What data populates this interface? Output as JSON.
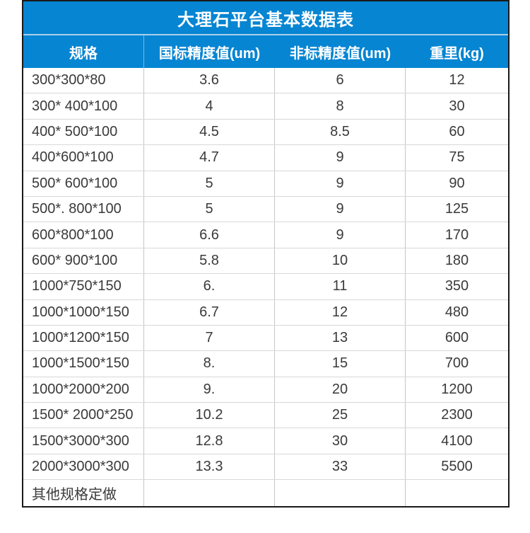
{
  "table": {
    "title": "大理石平台基本数据表",
    "columns": [
      "规格",
      "国标精度值(um)",
      "非标精度值(um)",
      "重里(kg)"
    ],
    "rows": [
      [
        "300*300*80",
        "3.6",
        "6",
        "12"
      ],
      [
        "300* 400*100",
        "4",
        "8",
        "30"
      ],
      [
        "400* 500*100",
        "4.5",
        "8.5",
        "60"
      ],
      [
        "400*600*100",
        "4.7",
        "9",
        "75"
      ],
      [
        "500* 600*100",
        "5",
        "9",
        "90"
      ],
      [
        "500*. 800*100",
        "5",
        "9",
        "125"
      ],
      [
        "600*800*100",
        "6.6",
        "9",
        "170"
      ],
      [
        "600* 900*100",
        "5.8",
        "10",
        "180"
      ],
      [
        "1000*750*150",
        "6.",
        "11",
        "350"
      ],
      [
        "1000*1000*150",
        "6.7",
        "12",
        "480"
      ],
      [
        "1000*1200*150",
        "7",
        "13",
        "600"
      ],
      [
        "1000*1500*150",
        "8.",
        "15",
        "700"
      ],
      [
        "1000*2000*200",
        "9.",
        "20",
        "1200"
      ],
      [
        "1500* 2000*250",
        "10.2",
        "25",
        "2300"
      ],
      [
        "1500*3000*300",
        "12.8",
        "30",
        "4100"
      ],
      [
        "2000*3000*300",
        "13.3",
        "33",
        "5500"
      ]
    ],
    "footer": "其他规格定做",
    "colors": {
      "header_blue": "#0685d2",
      "header_text": "#ffffff",
      "title_separator": "#a9d0ea",
      "body_text": "#3a3a3a",
      "grid_vertical": "#c6c6c6",
      "grid_horizontal": "#d8d8d8",
      "outer_border": "#191919"
    }
  }
}
